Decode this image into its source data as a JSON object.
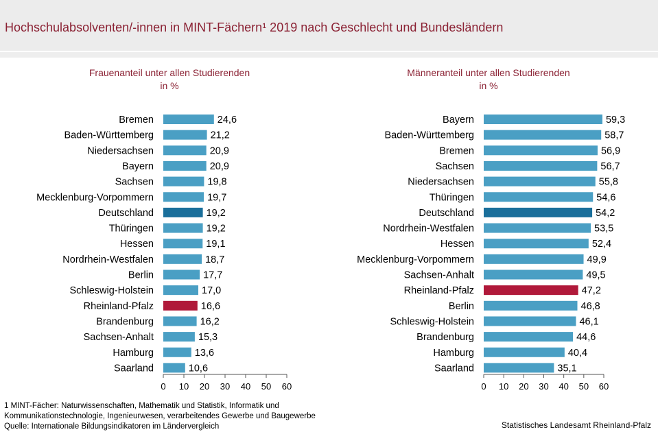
{
  "title": "Hochschulabsolventen/-innen in MINT-Fächern¹ 2019 nach Geschlecht und Bundesländern",
  "footnote": {
    "line1": "1 MINT-Fächer:  Naturwissenschaften,  Mathematik und Statistik, Informatik und",
    "line2": "Kommunikationstechnologie,  Ingenieurwesen,  verarbeitendes  Gewerbe und Baugewerbe",
    "line3": "Quelle:  Internationale  Bildungsindikatoren  im Ländervergleich"
  },
  "credit": "Statistisches Landesamt  Rheinland-Pfalz",
  "colors": {
    "default": "#4a9fc4",
    "deutschland": "#1a6f9b",
    "rheinland_pfalz": "#b0193a",
    "title": "#8b2234"
  },
  "chart_data": [
    {
      "type": "bar",
      "orientation": "horizontal",
      "title": "Frauenanteil  unter  allen  Studierenden",
      "subtitle": "in %",
      "categories": [
        "Bremen",
        "Baden-Württemberg",
        "Niedersachsen",
        "Bayern",
        "Sachsen",
        "Mecklenburg-Vorpommern",
        "Deutschland",
        "Thüringen",
        "Hessen",
        "Nordrhein-Westfalen",
        "Berlin",
        "Schleswig-Holstein",
        "Rheinland-Pfalz",
        "Brandenburg",
        "Sachsen-Anhalt",
        "Hamburg",
        "Saarland"
      ],
      "values": [
        24.6,
        21.2,
        20.9,
        20.9,
        19.8,
        19.7,
        19.2,
        19.2,
        19.1,
        18.7,
        17.7,
        17.0,
        16.6,
        16.2,
        15.3,
        13.6,
        10.6
      ],
      "labels": [
        "24,6",
        "21,2",
        "20,9",
        "20,9",
        "19,8",
        "19,7",
        "19,2",
        "19,2",
        "19,1",
        "18,7",
        "17,7",
        "17,0",
        "16,6",
        "16,2",
        "15,3",
        "13,6",
        "10,6"
      ],
      "xticks": [
        "0",
        "10",
        "20",
        "30",
        "40",
        "50",
        "60"
      ],
      "xlim": [
        0,
        60
      ],
      "grid": false
    },
    {
      "type": "bar",
      "orientation": "horizontal",
      "title": "Männeranteil  unter  allen  Studierenden",
      "subtitle": "in %",
      "categories": [
        "Bayern",
        "Baden-Württemberg",
        "Bremen",
        "Sachsen",
        "Niedersachsen",
        "Thüringen",
        "Deutschland",
        "Nordrhein-Westfalen",
        "Hessen",
        "Mecklenburg-Vorpommern",
        "Sachsen-Anhalt",
        "Rheinland-Pfalz",
        "Berlin",
        "Schleswig-Holstein",
        "Brandenburg",
        "Hamburg",
        "Saarland"
      ],
      "values": [
        59.3,
        58.7,
        56.9,
        56.7,
        55.8,
        54.6,
        54.2,
        53.5,
        52.4,
        49.9,
        49.5,
        47.2,
        46.8,
        46.1,
        44.6,
        40.4,
        35.1
      ],
      "labels": [
        "59,3",
        "58,7",
        "56,9",
        "56,7",
        "55,8",
        "54,6",
        "54,2",
        "53,5",
        "52,4",
        "49,9",
        "49,5",
        "47,2",
        "46,8",
        "46,1",
        "44,6",
        "40,4",
        "35,1"
      ],
      "xticks": [
        "0",
        "10",
        "20",
        "30",
        "40",
        "50",
        "60"
      ],
      "xlim": [
        0,
        60
      ],
      "grid": false
    }
  ]
}
